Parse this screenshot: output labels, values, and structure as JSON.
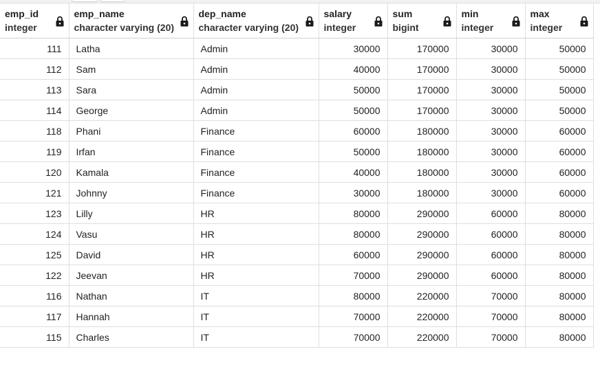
{
  "columns": [
    {
      "name": "emp_id",
      "type": "integer",
      "align": "right"
    },
    {
      "name": "emp_name",
      "type": "character varying (20)",
      "align": "left"
    },
    {
      "name": "dep_name",
      "type": "character varying (20)",
      "align": "left"
    },
    {
      "name": "salary",
      "type": "integer",
      "align": "right"
    },
    {
      "name": "sum",
      "type": "bigint",
      "align": "right"
    },
    {
      "name": "min",
      "type": "integer",
      "align": "right"
    },
    {
      "name": "max",
      "type": "integer",
      "align": "right"
    }
  ],
  "rows": [
    [
      "111",
      "Latha",
      "Admin",
      "30000",
      "170000",
      "30000",
      "50000"
    ],
    [
      "112",
      "Sam",
      "Admin",
      "40000",
      "170000",
      "30000",
      "50000"
    ],
    [
      "113",
      "Sara",
      "Admin",
      "50000",
      "170000",
      "30000",
      "50000"
    ],
    [
      "114",
      "George",
      "Admin",
      "50000",
      "170000",
      "30000",
      "50000"
    ],
    [
      "118",
      "Phani",
      "Finance",
      "60000",
      "180000",
      "30000",
      "60000"
    ],
    [
      "119",
      "Irfan",
      "Finance",
      "50000",
      "180000",
      "30000",
      "60000"
    ],
    [
      "120",
      "Kamala",
      "Finance",
      "40000",
      "180000",
      "30000",
      "60000"
    ],
    [
      "121",
      "Johnny",
      "Finance",
      "30000",
      "180000",
      "30000",
      "60000"
    ],
    [
      "123",
      "Lilly",
      "HR",
      "80000",
      "290000",
      "60000",
      "80000"
    ],
    [
      "124",
      "Vasu",
      "HR",
      "80000",
      "290000",
      "60000",
      "80000"
    ],
    [
      "125",
      "David",
      "HR",
      "60000",
      "290000",
      "60000",
      "80000"
    ],
    [
      "122",
      "Jeevan",
      "HR",
      "70000",
      "290000",
      "60000",
      "80000"
    ],
    [
      "116",
      "Nathan",
      "IT",
      "80000",
      "220000",
      "70000",
      "80000"
    ],
    [
      "117",
      "Hannah",
      "IT",
      "70000",
      "220000",
      "70000",
      "80000"
    ],
    [
      "115",
      "Charles",
      "IT",
      "70000",
      "220000",
      "70000",
      "80000"
    ]
  ],
  "icons": {
    "column_lock": "lock-icon"
  },
  "colors": {
    "header_text": "#222222",
    "cell_text": "#222222",
    "grid_line": "#dedede",
    "lock": "#1a1a1a"
  }
}
